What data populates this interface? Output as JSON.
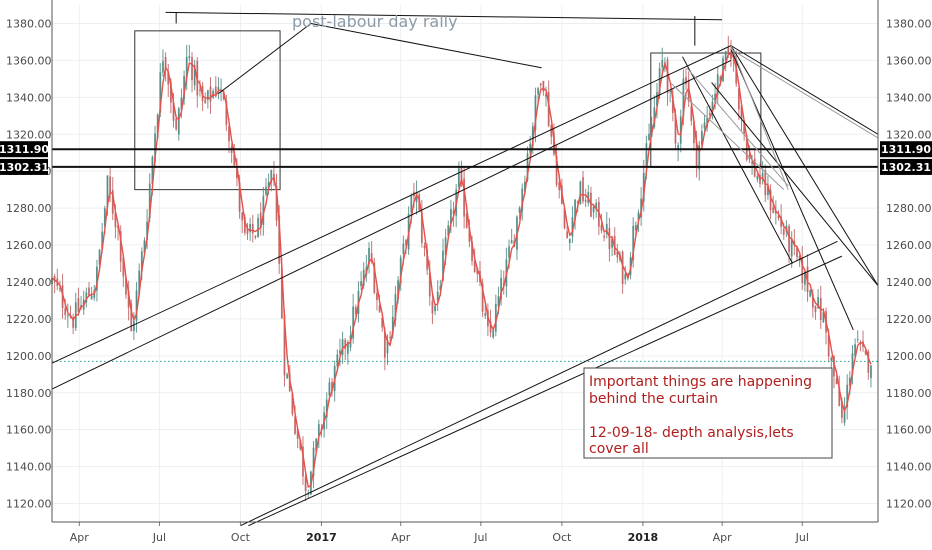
{
  "chart_data": {
    "type": "candlestick",
    "title": "",
    "xlabel": "",
    "ylabel": "",
    "ylim": [
      1110,
      1390
    ],
    "y_ticks": [
      1120,
      1140,
      1160,
      1180,
      1200,
      1220,
      1240,
      1260,
      1280,
      1300,
      1320,
      1340,
      1360,
      1380
    ],
    "y_axis_sides": [
      "left",
      "right"
    ],
    "x_ticks": [
      {
        "label": "Apr",
        "date": "2016-04-01",
        "bold": false
      },
      {
        "label": "Jul",
        "date": "2016-07-01",
        "bold": false
      },
      {
        "label": "Oct",
        "date": "2016-10-01",
        "bold": false
      },
      {
        "label": "2017",
        "date": "2017-01-01",
        "bold": true
      },
      {
        "label": "Apr",
        "date": "2017-04-01",
        "bold": false
      },
      {
        "label": "Jul",
        "date": "2017-07-01",
        "bold": false
      },
      {
        "label": "Oct",
        "date": "2017-10-01",
        "bold": false
      },
      {
        "label": "2018",
        "date": "2018-01-01",
        "bold": true
      },
      {
        "label": "Apr",
        "date": "2018-04-01",
        "bold": false
      },
      {
        "label": "Jul",
        "date": "2018-07-01",
        "bold": false
      }
    ],
    "x_range": [
      "2016-03-01",
      "2018-09-25"
    ],
    "grid": true,
    "colors": {
      "up": "#4d8a82",
      "down": "#c06060",
      "moving_average": "#e8504a",
      "lines": "#111111",
      "grey_lines": "#9a9a9a",
      "dotted_level": "#2a9a8a"
    },
    "price_path": [
      {
        "date": "2016-03-01",
        "value": 1240
      },
      {
        "date": "2016-03-25",
        "value": 1220
      },
      {
        "date": "2016-04-20",
        "value": 1240
      },
      {
        "date": "2016-05-03",
        "value": 1292
      },
      {
        "date": "2016-05-15",
        "value": 1268
      },
      {
        "date": "2016-05-30",
        "value": 1212
      },
      {
        "date": "2016-06-15",
        "value": 1268
      },
      {
        "date": "2016-06-25",
        "value": 1318
      },
      {
        "date": "2016-07-06",
        "value": 1368
      },
      {
        "date": "2016-07-20",
        "value": 1320
      },
      {
        "date": "2016-08-02",
        "value": 1364
      },
      {
        "date": "2016-08-20",
        "value": 1334
      },
      {
        "date": "2016-09-06",
        "value": 1348
      },
      {
        "date": "2016-09-20",
        "value": 1318
      },
      {
        "date": "2016-10-05",
        "value": 1262
      },
      {
        "date": "2016-10-20",
        "value": 1268
      },
      {
        "date": "2016-11-08",
        "value": 1300
      },
      {
        "date": "2016-11-20",
        "value": 1196
      },
      {
        "date": "2016-12-15",
        "value": 1128
      },
      {
        "date": "2017-01-10",
        "value": 1182
      },
      {
        "date": "2017-02-01",
        "value": 1212
      },
      {
        "date": "2017-02-25",
        "value": 1256
      },
      {
        "date": "2017-03-15",
        "value": 1202
      },
      {
        "date": "2017-04-17",
        "value": 1292
      },
      {
        "date": "2017-05-08",
        "value": 1222
      },
      {
        "date": "2017-06-06",
        "value": 1296
      },
      {
        "date": "2017-07-10",
        "value": 1208
      },
      {
        "date": "2017-08-08",
        "value": 1266
      },
      {
        "date": "2017-09-08",
        "value": 1356
      },
      {
        "date": "2017-10-06",
        "value": 1262
      },
      {
        "date": "2017-10-20",
        "value": 1290
      },
      {
        "date": "2017-11-15",
        "value": 1272
      },
      {
        "date": "2017-12-12",
        "value": 1242
      },
      {
        "date": "2018-01-25",
        "value": 1364
      },
      {
        "date": "2018-02-08",
        "value": 1310
      },
      {
        "date": "2018-02-18",
        "value": 1358
      },
      {
        "date": "2018-03-01",
        "value": 1306
      },
      {
        "date": "2018-03-25",
        "value": 1346
      },
      {
        "date": "2018-04-11",
        "value": 1366
      },
      {
        "date": "2018-05-01",
        "value": 1306
      },
      {
        "date": "2018-05-20",
        "value": 1290
      },
      {
        "date": "2018-06-15",
        "value": 1262
      },
      {
        "date": "2018-07-05",
        "value": 1240
      },
      {
        "date": "2018-07-25",
        "value": 1220
      },
      {
        "date": "2018-08-16",
        "value": 1162
      },
      {
        "date": "2018-08-28",
        "value": 1208
      },
      {
        "date": "2018-09-12",
        "value": 1196
      },
      {
        "date": "2018-09-18",
        "value": 1200
      }
    ],
    "horizontal_levels": [
      {
        "label": "1311.90",
        "value": 1311.9,
        "style": "thick"
      },
      {
        "label": "1302.31",
        "value": 1302.31,
        "style": "thick"
      },
      {
        "value": 1197,
        "style": "dotted"
      }
    ],
    "trendlines": [
      {
        "id": "upper-channel-a",
        "points": [
          {
            "date": "2016-03-01",
            "value": 1196
          },
          {
            "date": "2018-04-11",
            "value": 1368
          }
        ]
      },
      {
        "id": "upper-channel-b",
        "points": [
          {
            "date": "2016-03-01",
            "value": 1182
          },
          {
            "date": "2018-04-11",
            "value": 1360
          }
        ]
      },
      {
        "id": "lower-channel-a",
        "points": [
          {
            "date": "2016-10-01",
            "value": 1108
          },
          {
            "date": "2018-08-10",
            "value": 1262
          }
        ]
      },
      {
        "id": "lower-channel-b",
        "points": [
          {
            "date": "2016-10-10",
            "value": 1108
          },
          {
            "date": "2018-08-15",
            "value": 1254
          }
        ]
      },
      {
        "id": "rally-pointer-1",
        "points": [
          {
            "date": "2016-09-06",
            "value": 1342
          },
          {
            "date": "2016-12-20",
            "value": 1380
          }
        ]
      },
      {
        "id": "rally-pointer-2",
        "points": [
          {
            "date": "2016-12-20",
            "value": 1380
          },
          {
            "date": "2017-09-08",
            "value": 1356
          }
        ]
      },
      {
        "id": "top-link",
        "points": [
          {
            "date": "2016-07-08",
            "value": 1386
          },
          {
            "date": "2018-04-01",
            "value": 1382
          }
        ]
      },
      {
        "id": "top-right-fan",
        "points": [
          {
            "date": "2018-04-11",
            "value": 1368
          },
          {
            "date": "2018-09-25",
            "value": 1320
          }
        ]
      },
      {
        "id": "mid-right-fan",
        "points": [
          {
            "date": "2018-04-11",
            "value": 1368
          },
          {
            "date": "2018-09-25",
            "value": 1238
          }
        ]
      },
      {
        "id": "down-fan-steep",
        "points": [
          {
            "date": "2018-04-11",
            "value": 1366
          },
          {
            "date": "2018-08-28",
            "value": 1214
          }
        ]
      },
      {
        "id": "down-fan-left",
        "points": [
          {
            "date": "2018-02-15",
            "value": 1362
          },
          {
            "date": "2018-06-20",
            "value": 1250
          }
        ]
      },
      {
        "id": "mid-right-fan-2",
        "points": [
          {
            "date": "2018-03-20",
            "value": 1348
          },
          {
            "date": "2018-09-25",
            "value": 1238
          }
        ]
      }
    ],
    "grey_trendlines": [
      {
        "points": [
          {
            "date": "2018-02-01",
            "value": 1348
          },
          {
            "date": "2018-06-10",
            "value": 1290
          }
        ]
      },
      {
        "points": [
          {
            "date": "2018-02-20",
            "value": 1356
          },
          {
            "date": "2018-06-15",
            "value": 1292
          }
        ]
      },
      {
        "points": [
          {
            "date": "2018-04-11",
            "value": 1368
          },
          {
            "date": "2018-06-15",
            "value": 1290
          }
        ]
      },
      {
        "points": [
          {
            "date": "2018-04-11",
            "value": 1366
          },
          {
            "date": "2018-09-25",
            "value": 1318
          }
        ]
      }
    ],
    "boxes": [
      {
        "id": "box-2016",
        "from": "2016-06-03",
        "to": "2016-11-15",
        "top": 1376,
        "bottom": 1290
      },
      {
        "id": "box-2018",
        "from": "2018-01-10",
        "to": "2018-05-15",
        "top": 1364,
        "bottom": 1302
      }
    ],
    "vertical_marks": [
      {
        "date": "2016-07-20",
        "from": 1380,
        "to": 1386
      },
      {
        "date": "2018-03-01",
        "from": 1368,
        "to": 1384
      }
    ],
    "annotations": {
      "title_text": "post-labour day rally",
      "note_lines": [
        "Important things are happening",
        "behind the curtain",
        "",
        "12-09-18- depth analysis,lets",
        "cover all"
      ]
    }
  }
}
